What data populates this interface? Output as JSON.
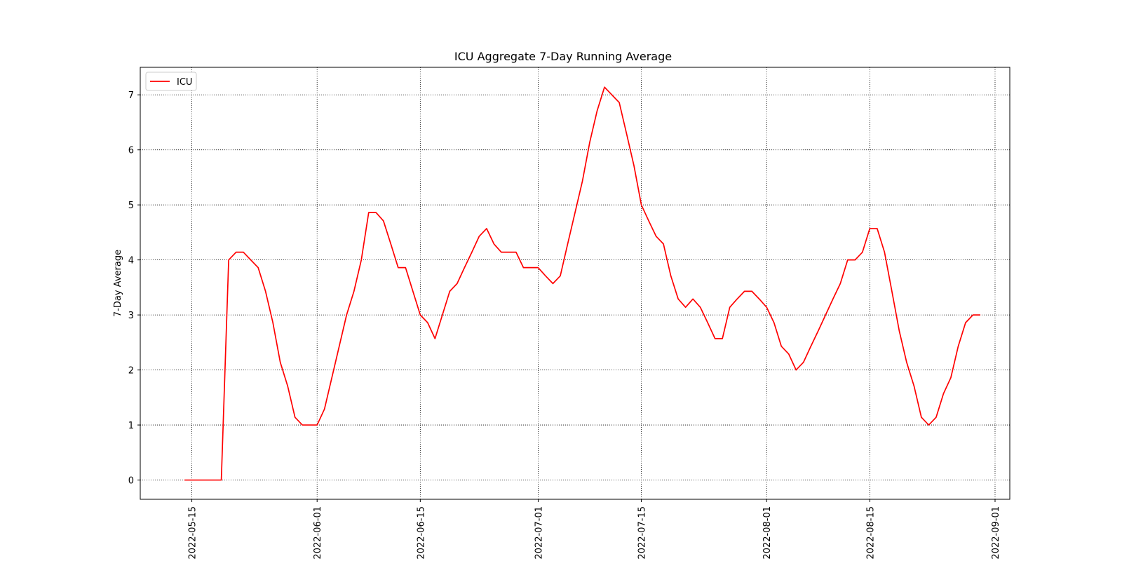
{
  "chart_data": {
    "type": "line",
    "title": "ICU Aggregate 7-Day Running Average",
    "xlabel": "",
    "ylabel": "7-Day Average",
    "grid": true,
    "legend_position": "top-left",
    "xlim": [
      "2022-05-08",
      "2022-09-03"
    ],
    "ylim": [
      -0.35,
      7.5
    ],
    "y_ticks": [
      0,
      1,
      2,
      3,
      4,
      5,
      6,
      7
    ],
    "x_ticks": [
      "2022-05-15",
      "2022-06-01",
      "2022-06-15",
      "2022-07-01",
      "2022-07-15",
      "2022-08-01",
      "2022-08-15",
      "2022-09-01"
    ],
    "line_color": "#ff0000",
    "series": [
      {
        "name": "ICU",
        "x": [
          "2022-05-14",
          "2022-05-15",
          "2022-05-16",
          "2022-05-17",
          "2022-05-18",
          "2022-05-19",
          "2022-05-20",
          "2022-05-21",
          "2022-05-22",
          "2022-05-23",
          "2022-05-24",
          "2022-05-25",
          "2022-05-26",
          "2022-05-27",
          "2022-05-28",
          "2022-05-29",
          "2022-05-30",
          "2022-05-31",
          "2022-06-01",
          "2022-06-02",
          "2022-06-03",
          "2022-06-04",
          "2022-06-05",
          "2022-06-06",
          "2022-06-07",
          "2022-06-08",
          "2022-06-09",
          "2022-06-10",
          "2022-06-11",
          "2022-06-12",
          "2022-06-13",
          "2022-06-14",
          "2022-06-15",
          "2022-06-16",
          "2022-06-17",
          "2022-06-18",
          "2022-06-19",
          "2022-06-20",
          "2022-06-21",
          "2022-06-22",
          "2022-06-23",
          "2022-06-24",
          "2022-06-25",
          "2022-06-26",
          "2022-06-27",
          "2022-06-28",
          "2022-06-29",
          "2022-06-30",
          "2022-07-01",
          "2022-07-02",
          "2022-07-03",
          "2022-07-04",
          "2022-07-05",
          "2022-07-06",
          "2022-07-07",
          "2022-07-08",
          "2022-07-09",
          "2022-07-10",
          "2022-07-11",
          "2022-07-12",
          "2022-07-13",
          "2022-07-14",
          "2022-07-15",
          "2022-07-16",
          "2022-07-17",
          "2022-07-18",
          "2022-07-19",
          "2022-07-20",
          "2022-07-21",
          "2022-07-22",
          "2022-07-23",
          "2022-07-24",
          "2022-07-25",
          "2022-07-26",
          "2022-07-27",
          "2022-07-28",
          "2022-07-29",
          "2022-07-30",
          "2022-07-31",
          "2022-08-01",
          "2022-08-02",
          "2022-08-03",
          "2022-08-04",
          "2022-08-05",
          "2022-08-06",
          "2022-08-07",
          "2022-08-08",
          "2022-08-09",
          "2022-08-10",
          "2022-08-11",
          "2022-08-12",
          "2022-08-13",
          "2022-08-14",
          "2022-08-15",
          "2022-08-16",
          "2022-08-17",
          "2022-08-18",
          "2022-08-19",
          "2022-08-20",
          "2022-08-21",
          "2022-08-22",
          "2022-08-23",
          "2022-08-24",
          "2022-08-25",
          "2022-08-26",
          "2022-08-27",
          "2022-08-28",
          "2022-08-29",
          "2022-08-30"
        ],
        "values": [
          0,
          0,
          0,
          0,
          0,
          0,
          4.0,
          4.14,
          4.14,
          4.0,
          3.86,
          3.43,
          2.86,
          2.14,
          1.71,
          1.14,
          1.0,
          1.0,
          1.0,
          1.29,
          1.86,
          2.43,
          3.0,
          3.43,
          4.0,
          4.86,
          4.86,
          4.71,
          4.29,
          3.86,
          3.86,
          3.43,
          3.0,
          2.86,
          2.57,
          3.0,
          3.43,
          3.57,
          3.86,
          4.14,
          4.43,
          4.57,
          4.29,
          4.14,
          4.14,
          4.14,
          3.86,
          3.86,
          3.86,
          3.71,
          3.57,
          3.71,
          4.29,
          4.86,
          5.43,
          6.14,
          6.71,
          7.14,
          7.0,
          6.86,
          6.29,
          5.71,
          5.0,
          4.71,
          4.43,
          4.29,
          3.71,
          3.29,
          3.14,
          3.29,
          3.14,
          2.86,
          2.57,
          2.57,
          3.14,
          3.29,
          3.43,
          3.43,
          3.29,
          3.14,
          2.86,
          2.43,
          2.29,
          2.0,
          2.14,
          2.43,
          2.71,
          3.0,
          3.29,
          3.57,
          4.0,
          4.0,
          4.14,
          4.57,
          4.57,
          4.14,
          3.43,
          2.71,
          2.14,
          1.71,
          1.14,
          1.0,
          1.14,
          1.57,
          1.86,
          2.43,
          2.86,
          3.0,
          3.0
        ]
      }
    ]
  }
}
